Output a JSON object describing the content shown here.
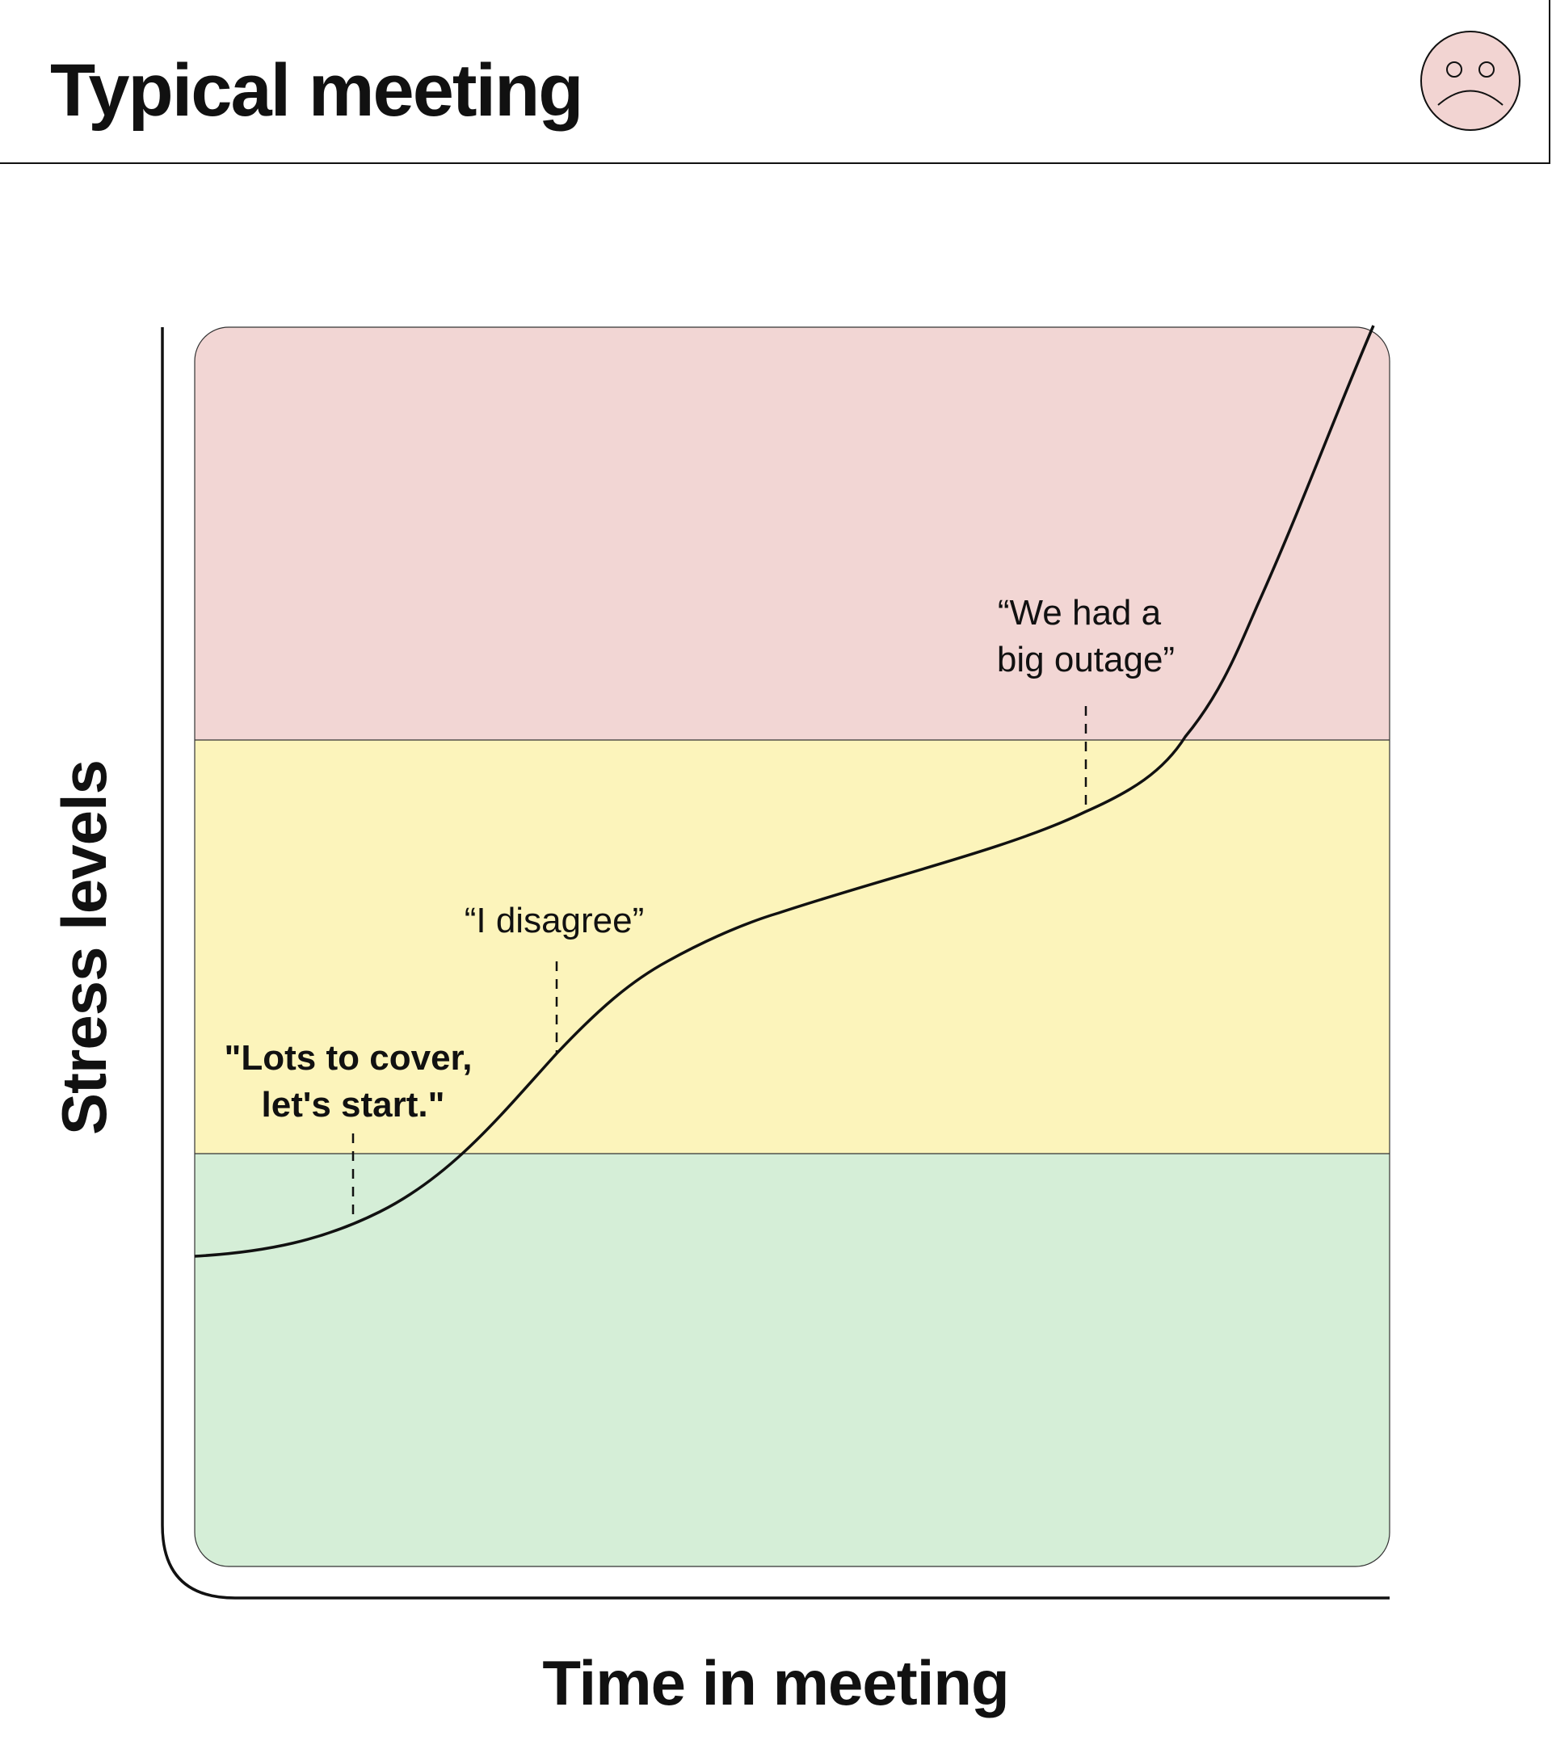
{
  "header": {
    "title": "Typical meeting"
  },
  "diagram": {
    "y_axis_label": "Stress levels",
    "x_axis_label": "Time in meeting",
    "annotations": [
      {
        "lines": [
          "\"Lots to cover,",
          "let's start.\""
        ]
      },
      {
        "lines": [
          "“I disagree”"
        ]
      },
      {
        "lines": [
          "“We had a",
          "big outage”"
        ]
      }
    ]
  }
}
